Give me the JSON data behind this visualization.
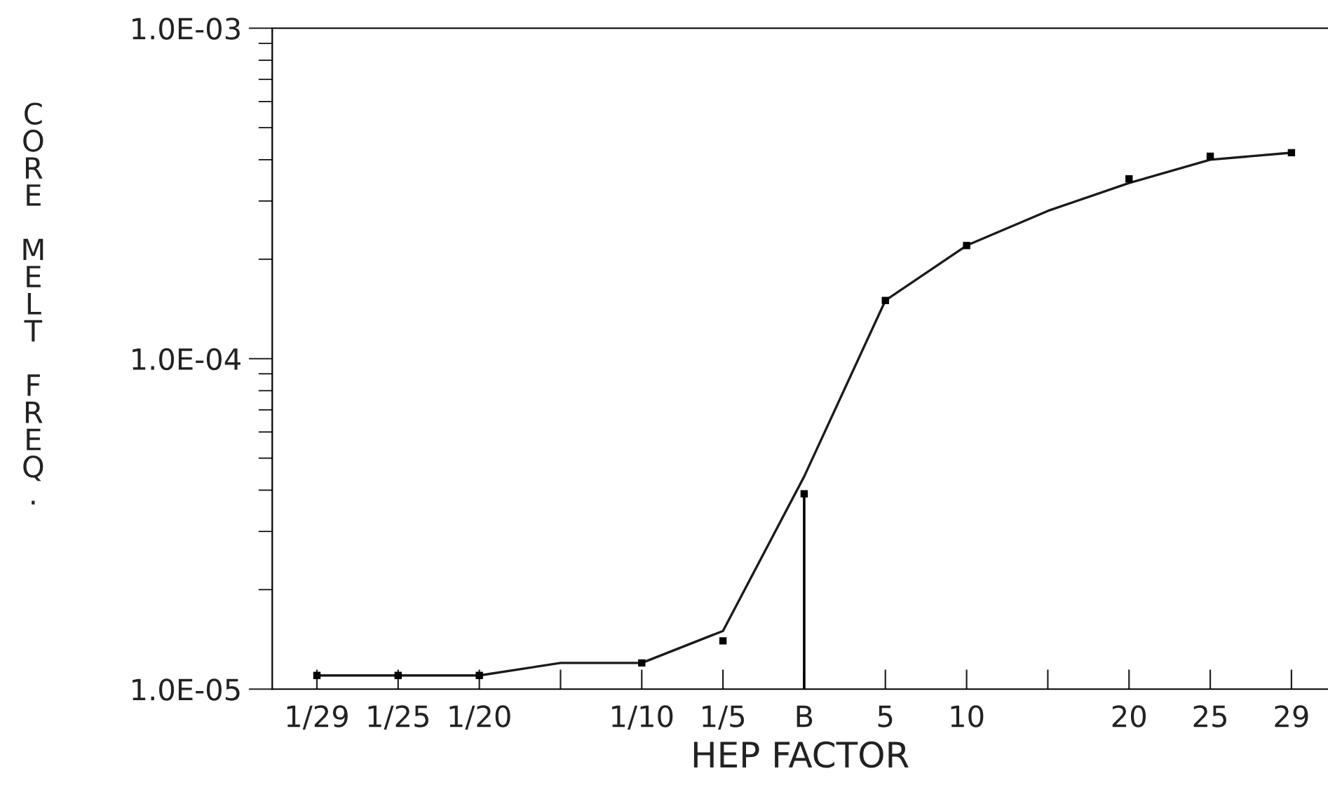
{
  "chart_data": {
    "type": "line",
    "xlabel": "HEP FACTOR",
    "ylabel": "CORE MELT FREQ.",
    "categories": [
      "1/29",
      "1/25",
      "1/20",
      null,
      "1/10",
      "1/5",
      "B",
      "5",
      "10",
      null,
      "20",
      "25",
      "29"
    ],
    "series": [
      {
        "color": "#1a1a1a",
        "marker": "none",
        "line_style": "solid",
        "values": [
          1.1e-05,
          1.1e-05,
          1.1e-05,
          1.2e-05,
          1.2e-05,
          1.5e-05,
          4.4e-05,
          0.00015,
          0.00022,
          0.00028,
          0.00034,
          0.0004,
          0.00042
        ]
      },
      {
        "type": "scatter",
        "color": "#000000",
        "marker": "square",
        "values": [
          1.1e-05,
          1.1e-05,
          1.1e-05,
          null,
          1.2e-05,
          1.4e-05,
          null,
          0.00015,
          0.00022,
          null,
          0.00035,
          0.00041,
          0.00042
        ]
      },
      {
        "type": "lollipop",
        "color": "#000000",
        "marker": "square",
        "values": [
          null,
          null,
          null,
          null,
          null,
          null,
          3.9e-05,
          null,
          null,
          null,
          null,
          null,
          null
        ]
      }
    ],
    "log": "y",
    "ylim": [
      1e-05,
      0.001
    ],
    "yticks": [
      {
        "value": 1e-05,
        "label": "1.0E-05"
      },
      {
        "value": 0.0001,
        "label": "1.0E-04"
      },
      {
        "value": 0.001,
        "label": "1.0E-03"
      }
    ],
    "grid": false,
    "legend": false
  }
}
